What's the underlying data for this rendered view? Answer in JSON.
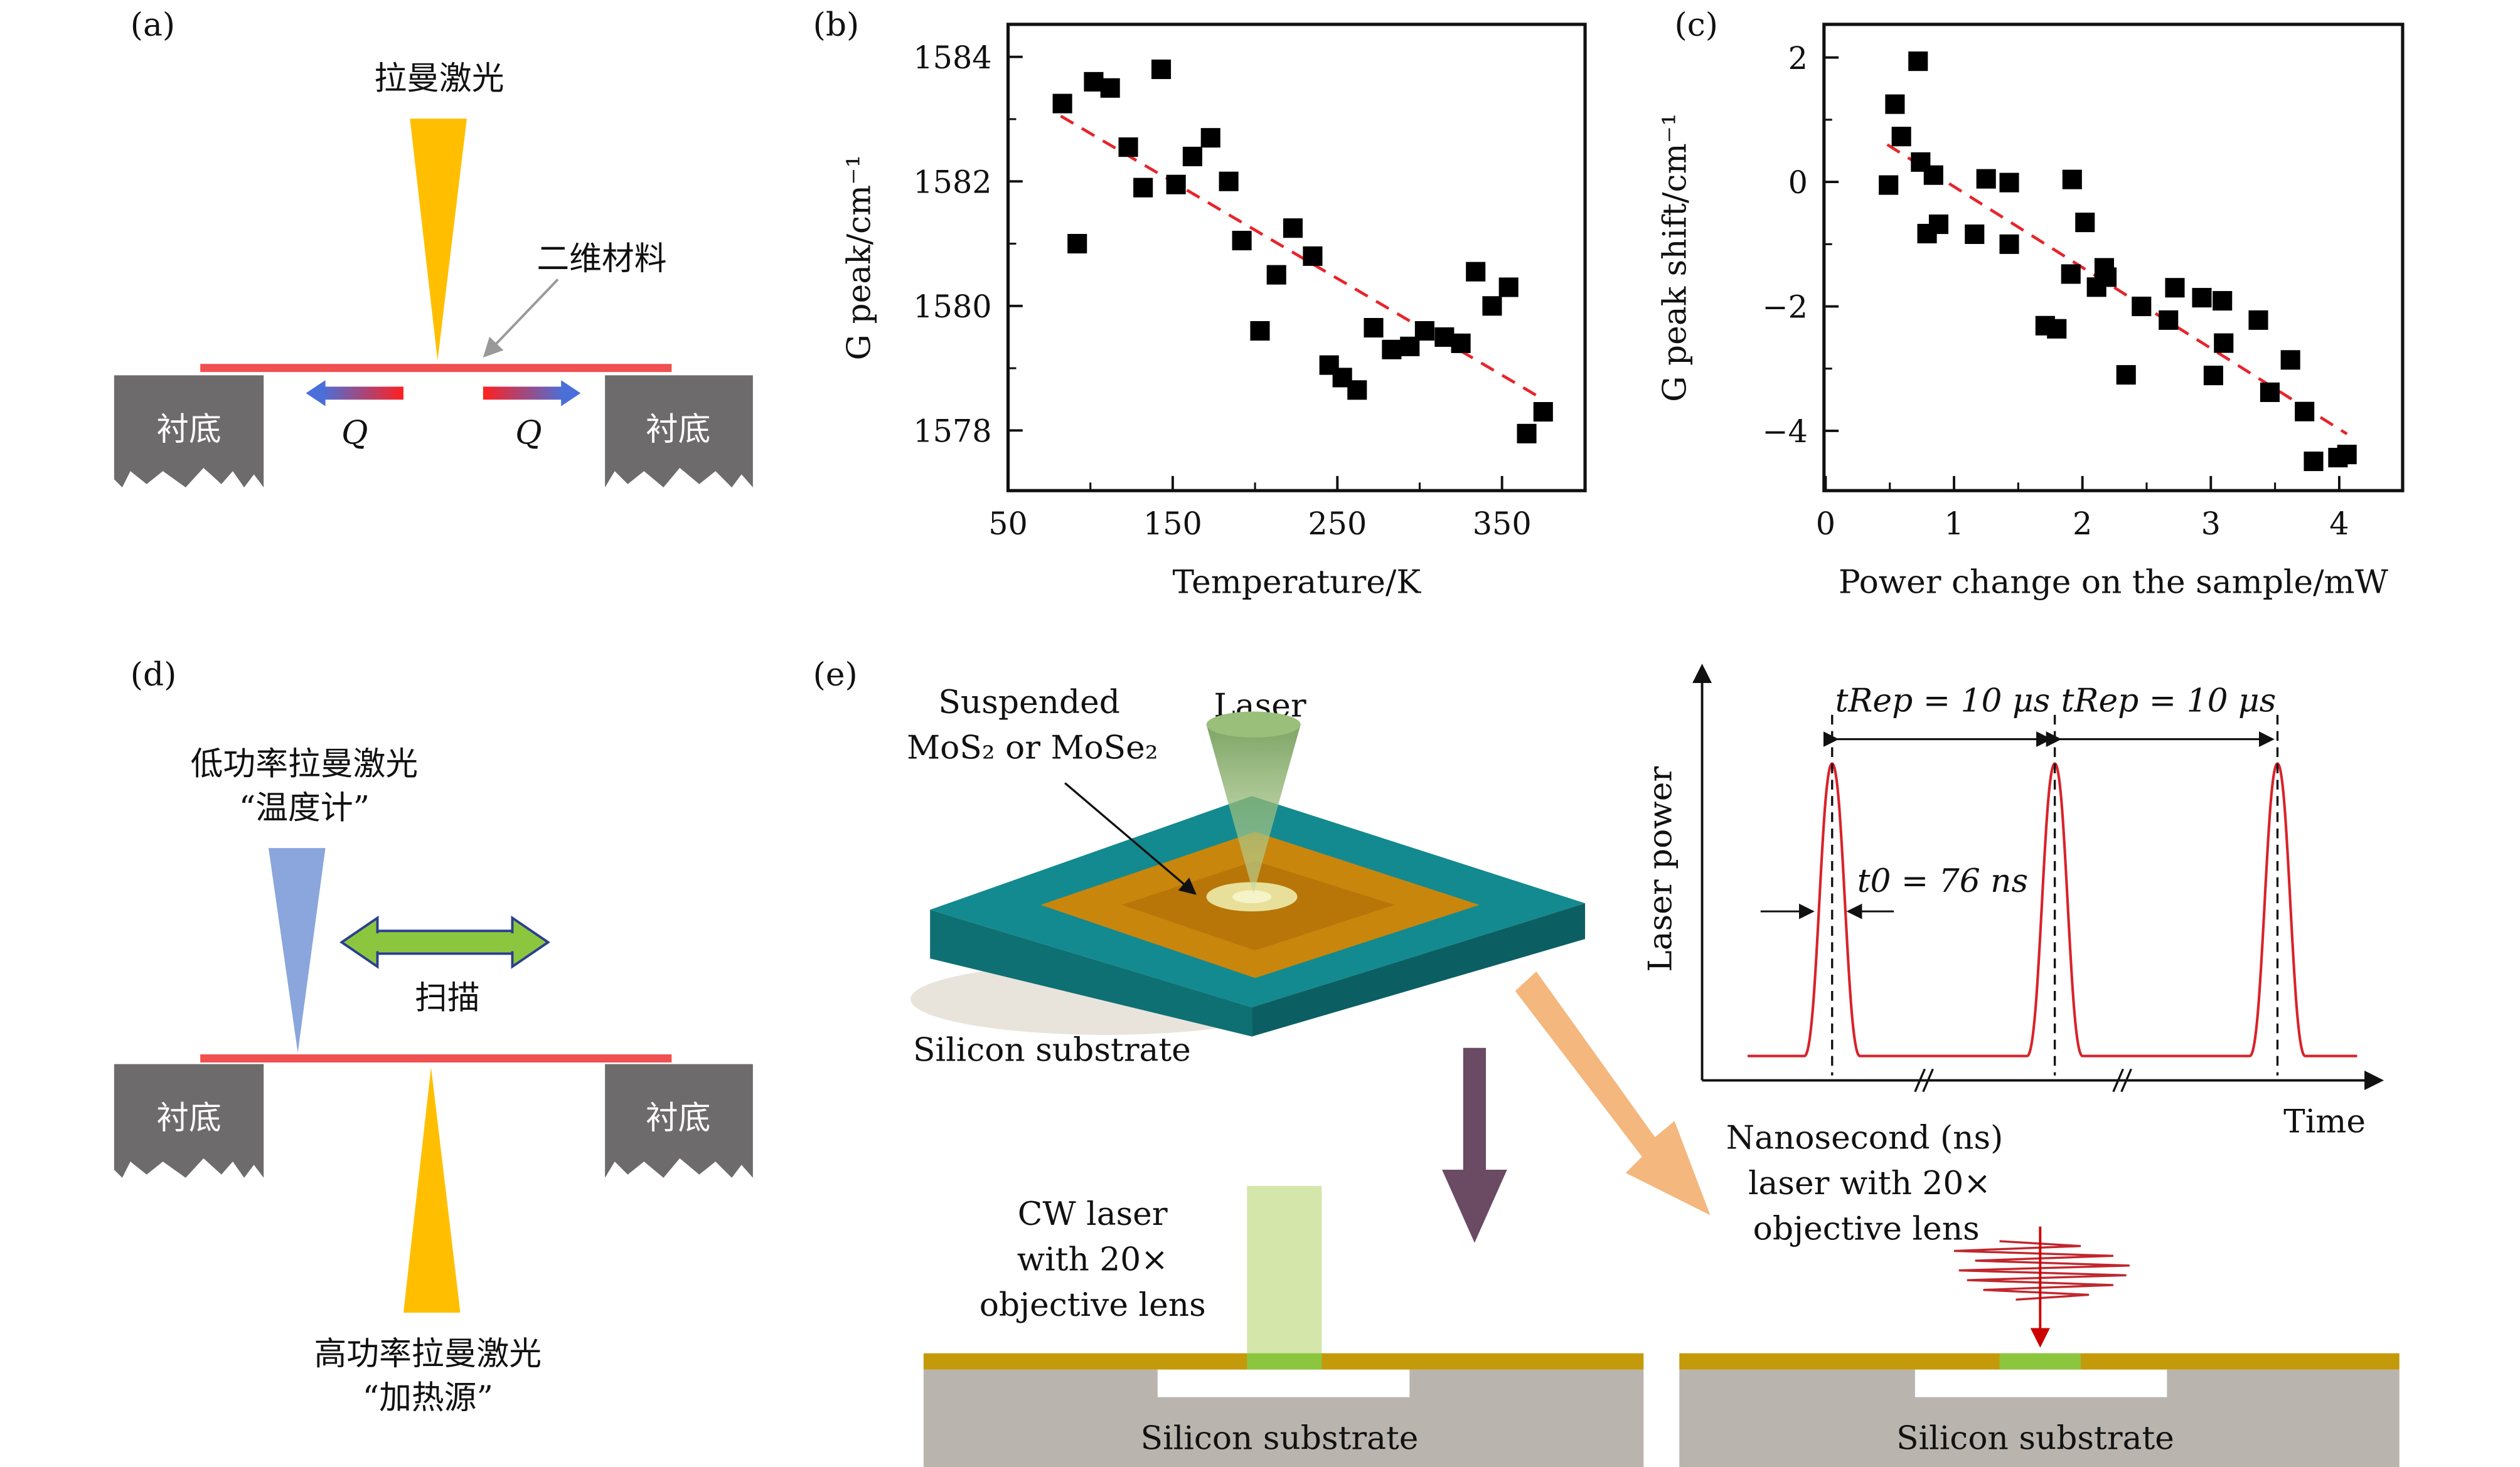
{
  "panel_a": {
    "label": "(a)",
    "laser": "拉曼激光",
    "material": "二维材料",
    "substrate_left": "衬底",
    "substrate_right": "衬底",
    "q_left": "Q",
    "q_right": "Q"
  },
  "panel_d": {
    "label": "(d)",
    "probe_laser": "低功率拉曼激光",
    "probe_role": "“温度计”",
    "scan": "扫描",
    "substrate_left": "衬底",
    "substrate_right": "衬底",
    "heat_laser": "高功率拉曼激光",
    "heat_role": "“加热源”"
  },
  "panel_e": {
    "label": "(e)",
    "suspended": "Suspended",
    "material": "MoS₂ or MoSe₂",
    "laser": "Laser",
    "silicon_top": "Silicon substrate",
    "y_axis": "Laser power",
    "t_rep_1": "tRep = 10 μs",
    "t_rep_2": "tRep = 10 μs",
    "t0": "t0 = 76 ns",
    "x_axis": "Time",
    "ns_line1": "Nanosecond (ns)",
    "ns_line2": "laser with 20×",
    "ns_line3": "objective lens",
    "cw_line1": "CW laser",
    "cw_line2": "with 20×",
    "cw_line3": "objective lens",
    "silicon_left": "Silicon substrate",
    "silicon_right": "Silicon substrate"
  },
  "colors": {
    "red": "#e8242a",
    "laser_yellow": "#ffbf00",
    "substrate_gray": "#6d6b6b",
    "probe_blue": "#8aa6dc",
    "scan_green": "#8cc63f",
    "slab_teal": "#138a8f",
    "film_orange": "#c9860d",
    "gold": "#c49a0a",
    "silicon": "#b9b5ae"
  },
  "chart_data": [
    {
      "panel": "(b)",
      "type": "scatter",
      "xlabel": "Temperature/K",
      "ylabel": "G peak/cm⁻¹",
      "xlim": [
        50,
        390
      ],
      "ylim": [
        1577.5,
        1584.5
      ],
      "xticks": [
        50,
        150,
        250,
        350
      ],
      "yticks": [
        1578,
        1580,
        1582,
        1584
      ],
      "points": [
        [
          83,
          1583.25
        ],
        [
          92,
          1581.0
        ],
        [
          102,
          1583.6
        ],
        [
          112,
          1583.5
        ],
        [
          123,
          1582.55
        ],
        [
          132,
          1581.9
        ],
        [
          143,
          1583.8
        ],
        [
          152,
          1581.95
        ],
        [
          162,
          1582.4
        ],
        [
          173,
          1582.7
        ],
        [
          184,
          1582.0
        ],
        [
          192,
          1581.05
        ],
        [
          203,
          1579.6
        ],
        [
          213,
          1580.5
        ],
        [
          223,
          1581.25
        ],
        [
          235,
          1580.8
        ],
        [
          245,
          1579.05
        ],
        [
          253,
          1578.85
        ],
        [
          262,
          1578.65
        ],
        [
          272,
          1579.65
        ],
        [
          283,
          1579.3
        ],
        [
          294,
          1579.35
        ],
        [
          303,
          1579.6
        ],
        [
          315,
          1579.5
        ],
        [
          325,
          1579.4
        ],
        [
          334,
          1580.55
        ],
        [
          344,
          1580.0
        ],
        [
          354,
          1580.3
        ],
        [
          365,
          1577.95
        ],
        [
          375,
          1578.3
        ]
      ],
      "fit": [
        [
          82,
          1583.05
        ],
        [
          375,
          1578.5
        ]
      ]
    },
    {
      "panel": "(c)",
      "type": "scatter",
      "xlabel": "Power change on the sample/mW",
      "ylabel": "G peak shift/cm⁻¹",
      "xlim": [
        0,
        4.5
      ],
      "ylim": [
        -5,
        2.5
      ],
      "xticks": [
        0,
        1,
        2,
        3,
        4
      ],
      "yticks": [
        2,
        0,
        -2,
        -4
      ],
      "ytick_labels": [
        "2",
        "0",
        "−2",
        "−4"
      ],
      "points": [
        [
          0.49,
          -0.05
        ],
        [
          0.54,
          1.25
        ],
        [
          0.59,
          0.73
        ],
        [
          0.72,
          1.94
        ],
        [
          0.74,
          0.32
        ],
        [
          0.84,
          0.11
        ],
        [
          0.79,
          -0.83
        ],
        [
          0.88,
          -0.68
        ],
        [
          1.25,
          0.05
        ],
        [
          1.16,
          -0.84
        ],
        [
          1.43,
          -0.01
        ],
        [
          1.43,
          -1.0
        ],
        [
          1.92,
          0.04
        ],
        [
          2.02,
          -0.65
        ],
        [
          1.91,
          -1.48
        ],
        [
          2.17,
          -1.38
        ],
        [
          2.19,
          -1.53
        ],
        [
          2.11,
          -1.69
        ],
        [
          1.71,
          -2.31
        ],
        [
          1.8,
          -2.36
        ],
        [
          2.34,
          -3.1
        ],
        [
          2.46,
          -2.0
        ],
        [
          2.72,
          -1.7
        ],
        [
          2.67,
          -2.22
        ],
        [
          2.93,
          -1.86
        ],
        [
          3.09,
          -1.91
        ],
        [
          3.1,
          -2.59
        ],
        [
          3.02,
          -3.11
        ],
        [
          3.37,
          -2.22
        ],
        [
          3.46,
          -3.38
        ],
        [
          3.62,
          -2.86
        ],
        [
          3.73,
          -3.69
        ],
        [
          3.8,
          -4.49
        ],
        [
          3.99,
          -4.43
        ],
        [
          4.06,
          -4.38
        ]
      ],
      "fit": [
        [
          0.48,
          0.6
        ],
        [
          4.06,
          -4.05
        ]
      ]
    }
  ],
  "chart_labels": {
    "b": "(b)",
    "c": "(c)"
  }
}
